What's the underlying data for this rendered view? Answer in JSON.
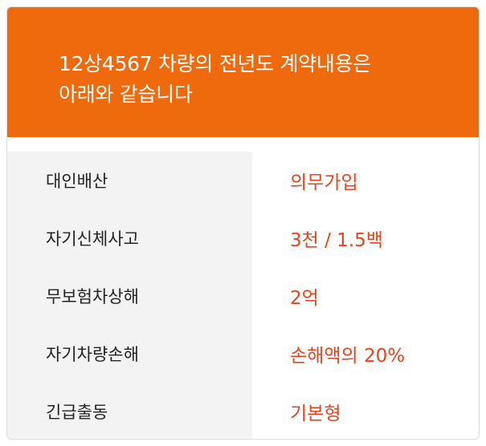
{
  "header": {
    "title_line1": "12상4567 차량의 전년도 계약내용은",
    "title_line2": "아래와 같습니다"
  },
  "coverage": [
    {
      "label": "대인배산",
      "value": "의무가입"
    },
    {
      "label": "자기신체사고",
      "value": "3천 / 1.5백"
    },
    {
      "label": "무보험차상해",
      "value": "2억"
    },
    {
      "label": "자기차량손해",
      "value": "손해액의 20%"
    },
    {
      "label": "긴급출동",
      "value": "기본형"
    }
  ],
  "colors": {
    "header_bg": "#ee6a0c",
    "value_text": "#e8431a",
    "label_bg": "#f3f3f3"
  }
}
